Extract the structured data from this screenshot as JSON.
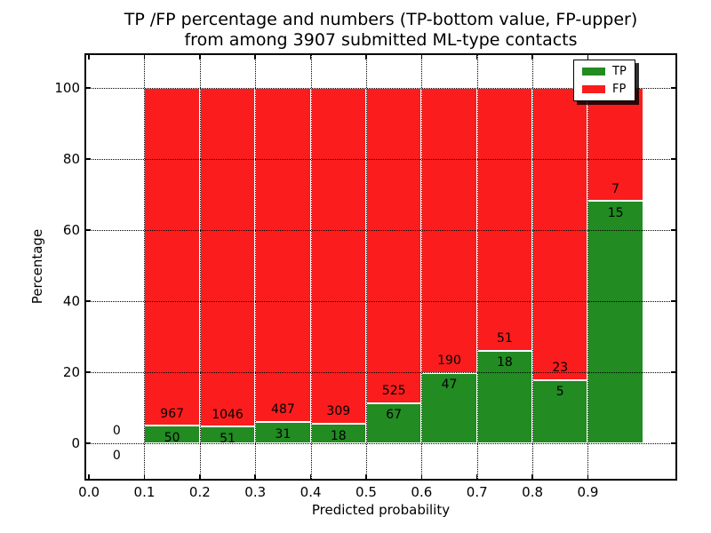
{
  "figure": {
    "title_line1": "TP /FP percentage and numbers (TP-bottom value, FP-upper)",
    "title_line2": "from among 3907 submitted ML-type contacts"
  },
  "chart_data": {
    "type": "bar",
    "stacked": true,
    "normalized": "percent",
    "title": "TP /FP percentage and numbers (TP-bottom value, FP-upper)\nfrom among 3907 submitted ML-type contacts",
    "xlabel": "Predicted probability",
    "ylabel": "Percentage",
    "total_contacts": 3907,
    "bin_start": 0.0,
    "bin_width": 0.1,
    "x_ticks": [
      "0.0",
      "0.1",
      "0.2",
      "0.3",
      "0.4",
      "0.5",
      "0.6",
      "0.7",
      "0.8",
      "0.9"
    ],
    "x_tick_values": [
      0.0,
      0.1,
      0.2,
      0.3,
      0.4,
      0.5,
      0.6,
      0.7,
      0.8,
      0.9
    ],
    "y_ticks": [
      0,
      20,
      40,
      60,
      80,
      100
    ],
    "xlim": [
      -0.005,
      1.058
    ],
    "ylim": [
      -10,
      109.3
    ],
    "grid": true,
    "grid_style": "dotted",
    "legend_position": "upper right",
    "label_offset_pct": 3.4,
    "series": [
      {
        "name": "TP",
        "color": "#228b22",
        "values": [
          0,
          50,
          51,
          31,
          18,
          67,
          47,
          18,
          5,
          15
        ]
      },
      {
        "name": "FP",
        "color": "#fb1d1d",
        "values": [
          0,
          967,
          1046,
          487,
          309,
          525,
          190,
          51,
          23,
          7
        ]
      }
    ]
  },
  "legend": {
    "items": [
      {
        "label": "TP",
        "color": "#228b22"
      },
      {
        "label": "FP",
        "color": "#fb1d1d"
      }
    ]
  },
  "colors": {
    "tp": "#228b22",
    "fp": "#fb1d1d",
    "grid": "#000000",
    "spine": "#000000",
    "background": "#ffffff"
  }
}
